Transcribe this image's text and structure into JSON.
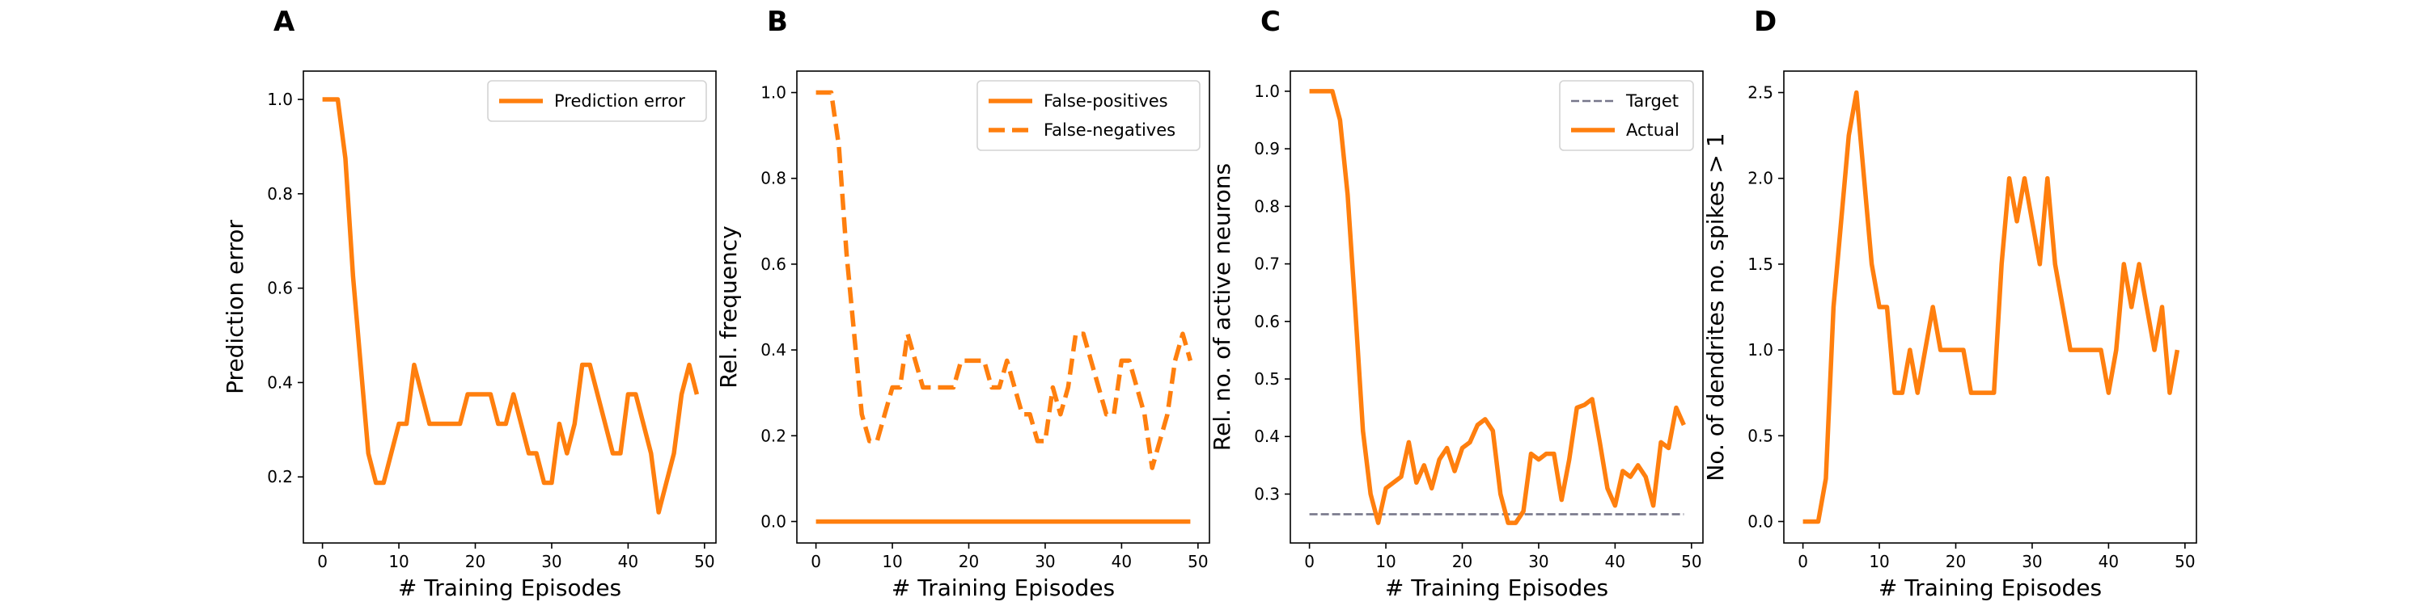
{
  "colors": {
    "orange": "#ff7f0e",
    "target": "#77778a"
  },
  "chart_data": [
    {
      "type": "line",
      "panel": "A",
      "xlabel": "# Training Episodes",
      "ylabel": "Prediction error",
      "xlim": [
        -2.5,
        51.5
      ],
      "ylim": [
        0.06,
        1.06
      ],
      "xticks": [
        0,
        10,
        20,
        30,
        40,
        50
      ],
      "yticks": [
        0.2,
        0.4,
        0.6,
        0.8,
        1.0
      ],
      "ytick_labels": [
        "0.2",
        "0.4",
        "0.6",
        "0.8",
        "1.0"
      ],
      "legend_position": "top-right",
      "series": [
        {
          "name": "Prediction error",
          "style": "solid",
          "x": [
            0,
            1,
            2,
            3,
            4,
            5,
            6,
            7,
            8,
            9,
            10,
            11,
            12,
            13,
            14,
            15,
            16,
            17,
            18,
            19,
            20,
            21,
            22,
            23,
            24,
            25,
            26,
            27,
            28,
            29,
            30,
            31,
            32,
            33,
            34,
            35,
            36,
            37,
            38,
            39,
            40,
            41,
            42,
            43,
            44,
            45,
            46,
            47,
            48,
            49
          ],
          "y": [
            1.0,
            1.0,
            1.0,
            0.875,
            0.625,
            0.4375,
            0.25,
            0.1875,
            0.1875,
            0.25,
            0.3125,
            0.3125,
            0.4375,
            0.375,
            0.3125,
            0.3125,
            0.3125,
            0.3125,
            0.3125,
            0.375,
            0.375,
            0.375,
            0.375,
            0.3125,
            0.3125,
            0.375,
            0.3125,
            0.25,
            0.25,
            0.1875,
            0.1875,
            0.3125,
            0.25,
            0.3125,
            0.4375,
            0.4375,
            0.375,
            0.3125,
            0.25,
            0.25,
            0.375,
            0.375,
            0.3125,
            0.25,
            0.125,
            0.1875,
            0.25,
            0.375,
            0.4375,
            0.375
          ]
        }
      ]
    },
    {
      "type": "line",
      "panel": "B",
      "xlabel": "# Training Episodes",
      "ylabel": "Rel. frequency",
      "xlim": [
        -2.5,
        51.5
      ],
      "ylim": [
        -0.05,
        1.05
      ],
      "xticks": [
        0,
        10,
        20,
        30,
        40,
        50
      ],
      "yticks": [
        0.0,
        0.2,
        0.4,
        0.6,
        0.8,
        1.0
      ],
      "ytick_labels": [
        "0.0",
        "0.2",
        "0.4",
        "0.6",
        "0.8",
        "1.0"
      ],
      "legend_position": "top-right",
      "series": [
        {
          "name": "False-positives",
          "style": "solid",
          "x": [
            0,
            1,
            2,
            3,
            4,
            5,
            6,
            7,
            8,
            9,
            10,
            11,
            12,
            13,
            14,
            15,
            16,
            17,
            18,
            19,
            20,
            21,
            22,
            23,
            24,
            25,
            26,
            27,
            28,
            29,
            30,
            31,
            32,
            33,
            34,
            35,
            36,
            37,
            38,
            39,
            40,
            41,
            42,
            43,
            44,
            45,
            46,
            47,
            48,
            49
          ],
          "y": [
            0,
            0,
            0,
            0,
            0,
            0,
            0,
            0,
            0,
            0,
            0,
            0,
            0,
            0,
            0,
            0,
            0,
            0,
            0,
            0,
            0,
            0,
            0,
            0,
            0,
            0,
            0,
            0,
            0,
            0,
            0,
            0,
            0,
            0,
            0,
            0,
            0,
            0,
            0,
            0,
            0,
            0,
            0,
            0,
            0,
            0,
            0,
            0,
            0,
            0
          ]
        },
        {
          "name": "False-negatives",
          "style": "dashed",
          "x": [
            0,
            1,
            2,
            3,
            4,
            5,
            6,
            7,
            8,
            9,
            10,
            11,
            12,
            13,
            14,
            15,
            16,
            17,
            18,
            19,
            20,
            21,
            22,
            23,
            24,
            25,
            26,
            27,
            28,
            29,
            30,
            31,
            32,
            33,
            34,
            35,
            36,
            37,
            38,
            39,
            40,
            41,
            42,
            43,
            44,
            45,
            46,
            47,
            48,
            49
          ],
          "y": [
            1.0,
            1.0,
            1.0,
            0.875,
            0.625,
            0.4375,
            0.25,
            0.1875,
            0.1875,
            0.25,
            0.3125,
            0.3125,
            0.4375,
            0.375,
            0.3125,
            0.3125,
            0.3125,
            0.3125,
            0.3125,
            0.375,
            0.375,
            0.375,
            0.375,
            0.3125,
            0.3125,
            0.375,
            0.3125,
            0.25,
            0.25,
            0.1875,
            0.1875,
            0.3125,
            0.25,
            0.3125,
            0.4375,
            0.4375,
            0.375,
            0.3125,
            0.25,
            0.25,
            0.375,
            0.375,
            0.3125,
            0.25,
            0.125,
            0.1875,
            0.25,
            0.375,
            0.4375,
            0.375
          ]
        }
      ]
    },
    {
      "type": "line",
      "panel": "C",
      "xlabel": "# Training Episodes",
      "ylabel": "Rel. no. of active neurons",
      "xlim": [
        -2.5,
        51.5
      ],
      "ylim": [
        0.215,
        1.035
      ],
      "xticks": [
        0,
        10,
        20,
        30,
        40,
        50
      ],
      "yticks": [
        0.3,
        0.4,
        0.5,
        0.6,
        0.7,
        0.8,
        0.9,
        1.0
      ],
      "ytick_labels": [
        "0.3",
        "0.4",
        "0.5",
        "0.6",
        "0.7",
        "0.8",
        "0.9",
        "1.0"
      ],
      "legend_position": "top-right",
      "series": [
        {
          "name": "Target",
          "style": "dashed-thin",
          "x": [
            0,
            49
          ],
          "y": [
            0.265,
            0.265
          ]
        },
        {
          "name": "Actual",
          "style": "solid",
          "x": [
            0,
            1,
            2,
            3,
            4,
            5,
            6,
            7,
            8,
            9,
            10,
            11,
            12,
            13,
            14,
            15,
            16,
            17,
            18,
            19,
            20,
            21,
            22,
            23,
            24,
            25,
            26,
            27,
            28,
            29,
            30,
            31,
            32,
            33,
            34,
            35,
            36,
            37,
            38,
            39,
            40,
            41,
            42,
            43,
            44,
            45,
            46,
            47,
            48,
            49
          ],
          "y": [
            1.0,
            1.0,
            1.0,
            1.0,
            0.95,
            0.82,
            0.62,
            0.41,
            0.3,
            0.25,
            0.31,
            0.32,
            0.33,
            0.39,
            0.32,
            0.35,
            0.31,
            0.36,
            0.38,
            0.34,
            0.38,
            0.39,
            0.42,
            0.43,
            0.41,
            0.3,
            0.25,
            0.25,
            0.27,
            0.37,
            0.36,
            0.37,
            0.37,
            0.29,
            0.36,
            0.45,
            0.455,
            0.465,
            0.39,
            0.31,
            0.28,
            0.34,
            0.33,
            0.35,
            0.33,
            0.28,
            0.39,
            0.38,
            0.45,
            0.42
          ]
        }
      ]
    },
    {
      "type": "line",
      "panel": "D",
      "xlabel": "# Training Episodes",
      "ylabel": "No. of dendrites no. spikes > 1",
      "xlim": [
        -2.5,
        51.5
      ],
      "ylim": [
        -0.125,
        2.625
      ],
      "xticks": [
        0,
        10,
        20,
        30,
        40,
        50
      ],
      "yticks": [
        0.0,
        0.5,
        1.0,
        1.5,
        2.0,
        2.5
      ],
      "ytick_labels": [
        "0.0",
        "0.5",
        "1.0",
        "1.5",
        "2.0",
        "2.5"
      ],
      "legend_position": "none",
      "series": [
        {
          "name": "",
          "style": "solid",
          "x": [
            0,
            1,
            2,
            3,
            4,
            5,
            6,
            7,
            8,
            9,
            10,
            11,
            12,
            13,
            14,
            15,
            16,
            17,
            18,
            19,
            20,
            21,
            22,
            23,
            24,
            25,
            26,
            27,
            28,
            29,
            30,
            31,
            32,
            33,
            34,
            35,
            36,
            37,
            38,
            39,
            40,
            41,
            42,
            43,
            44,
            45,
            46,
            47,
            48,
            49
          ],
          "y": [
            0,
            0,
            0,
            0.25,
            1.25,
            1.75,
            2.25,
            2.5,
            2.0,
            1.5,
            1.25,
            1.25,
            0.75,
            0.75,
            1.0,
            0.75,
            1.0,
            1.25,
            1.0,
            1.0,
            1.0,
            1.0,
            0.75,
            0.75,
            0.75,
            0.75,
            1.5,
            2.0,
            1.75,
            2.0,
            1.75,
            1.5,
            2.0,
            1.5,
            1.25,
            1.0,
            1.0,
            1.0,
            1.0,
            1.0,
            0.75,
            1.0,
            1.5,
            1.25,
            1.5,
            1.25,
            1.0,
            1.25,
            0.75,
            1.0
          ]
        }
      ]
    }
  ]
}
